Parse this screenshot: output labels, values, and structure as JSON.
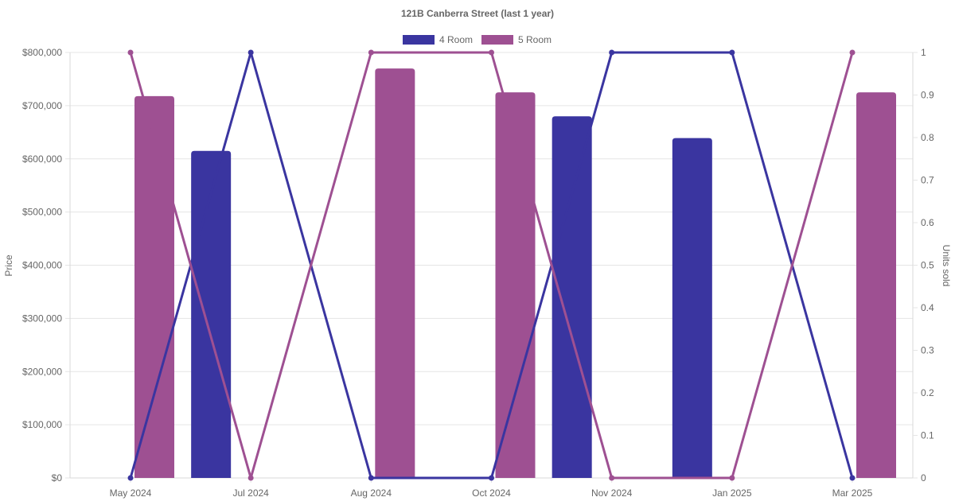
{
  "chart_data": {
    "type": "bar",
    "title": "121B Canberra Street (last 1 year)",
    "categories": [
      "May 2024",
      "Jul 2024",
      "Aug 2024",
      "Oct 2024",
      "Nov 2024",
      "Jan 2025",
      "Mar 2025"
    ],
    "ylabel": "Price",
    "y2label": "Units sold",
    "ylim": [
      0,
      800000
    ],
    "y2lim": [
      0,
      1
    ],
    "y_ticks": [
      "$0",
      "$100,000",
      "$200,000",
      "$300,000",
      "$400,000",
      "$500,000",
      "$600,000",
      "$700,000",
      "$800,000"
    ],
    "y2_ticks": [
      "0",
      "0.1",
      "0.2",
      "0.3",
      "0.4",
      "0.5",
      "0.6",
      "0.7",
      "0.8",
      "0.9",
      "1"
    ],
    "grid": true,
    "legend_position": "top",
    "series": [
      {
        "name": "4 Room",
        "color": "#3a35a0",
        "price": [
          null,
          615000,
          null,
          null,
          680000,
          639000,
          null
        ],
        "units": [
          0,
          1,
          0,
          0,
          1,
          1,
          0
        ]
      },
      {
        "name": "5 Room",
        "color": "#9e5092",
        "price": [
          718000,
          null,
          770000,
          725000,
          null,
          null,
          725000
        ],
        "units": [
          1,
          0,
          1,
          1,
          0,
          0,
          1
        ]
      }
    ]
  }
}
